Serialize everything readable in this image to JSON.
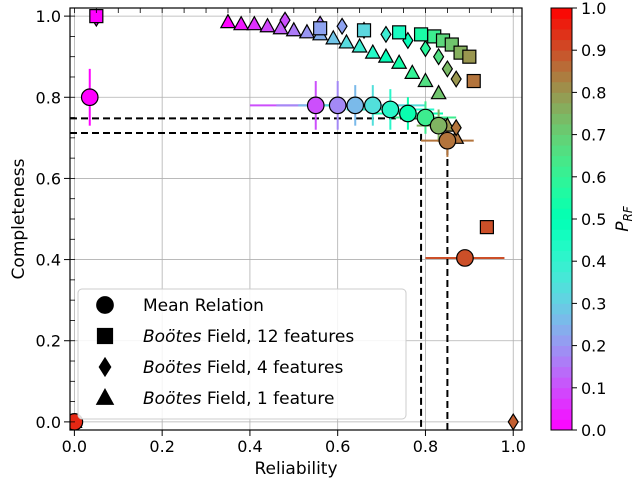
{
  "chart_data": {
    "type": "scatter",
    "xlabel": "Reliability",
    "ylabel": "Completeness",
    "xlim": [
      -0.01,
      1.02
    ],
    "ylim": [
      -0.02,
      1.02
    ],
    "xticks": [
      0.0,
      0.2,
      0.4,
      0.6,
      0.8,
      1.0
    ],
    "xtick_labels": [
      "0.0",
      "0.2",
      "0.4",
      "0.6",
      "0.8",
      "1.0"
    ],
    "yticks": [
      0.0,
      0.2,
      0.4,
      0.6,
      0.8,
      1.0
    ],
    "ytick_labels": [
      "0.0",
      "0.2",
      "0.4",
      "0.6",
      "0.8",
      "1.0"
    ],
    "grid": true,
    "legend_placement": "lower-left",
    "colorbar": {
      "label_main": "P",
      "label_sub": "RF",
      "range": [
        0.0,
        1.0
      ],
      "colormap": "rainbow",
      "ticks": [
        "0.0",
        "0.1",
        "0.2",
        "0.3",
        "0.4",
        "0.5",
        "0.6",
        "0.7",
        "0.8",
        "0.9",
        "1.0"
      ]
    },
    "reference_lines": [
      {
        "x": 0.79,
        "y": 0.712
      },
      {
        "x": 0.85,
        "y": 0.748
      }
    ],
    "series": [
      {
        "name": "Mean Relation",
        "marker": "circle",
        "points": [
          {
            "x": 0.035,
            "y": 0.8,
            "c": 0.0,
            "xerr": 0.0,
            "yerr": 0.07
          },
          {
            "x": 0.55,
            "y": 0.78,
            "c": 0.1,
            "xerr": 0.15,
            "yerr": 0.06
          },
          {
            "x": 0.6,
            "y": 0.78,
            "c": 0.18,
            "xerr": 0.14,
            "yerr": 0.06
          },
          {
            "x": 0.64,
            "y": 0.78,
            "c": 0.26,
            "xerr": 0.13,
            "yerr": 0.05
          },
          {
            "x": 0.68,
            "y": 0.78,
            "c": 0.34,
            "xerr": 0.12,
            "yerr": 0.05
          },
          {
            "x": 0.72,
            "y": 0.77,
            "c": 0.42,
            "xerr": 0.1,
            "yerr": 0.05
          },
          {
            "x": 0.76,
            "y": 0.76,
            "c": 0.52,
            "xerr": 0.08,
            "yerr": 0.04
          },
          {
            "x": 0.8,
            "y": 0.75,
            "c": 0.62,
            "xerr": 0.07,
            "yerr": 0.04
          },
          {
            "x": 0.83,
            "y": 0.73,
            "c": 0.75,
            "xerr": 0.05,
            "yerr": 0.04
          },
          {
            "x": 0.85,
            "y": 0.693,
            "c": 0.85,
            "xerr": 0.06,
            "yerr": 0.04
          },
          {
            "x": 0.89,
            "y": 0.404,
            "c": 0.9,
            "xerr": 0.09,
            "yerr": 0.0
          },
          {
            "x": 0.0,
            "y": 0.0,
            "c": 0.95,
            "xerr": 0.0,
            "yerr": 0.0
          }
        ]
      },
      {
        "name": "Boötes Field, 12 features",
        "marker": "square",
        "points": [
          {
            "x": 0.05,
            "y": 1.0,
            "c": 0.0
          },
          {
            "x": 0.56,
            "y": 0.97,
            "c": 0.22
          },
          {
            "x": 0.66,
            "y": 0.965,
            "c": 0.32
          },
          {
            "x": 0.74,
            "y": 0.96,
            "c": 0.45
          },
          {
            "x": 0.79,
            "y": 0.955,
            "c": 0.55
          },
          {
            "x": 0.82,
            "y": 0.95,
            "c": 0.62
          },
          {
            "x": 0.84,
            "y": 0.94,
            "c": 0.68
          },
          {
            "x": 0.86,
            "y": 0.93,
            "c": 0.72
          },
          {
            "x": 0.88,
            "y": 0.91,
            "c": 0.76
          },
          {
            "x": 0.9,
            "y": 0.9,
            "c": 0.8
          },
          {
            "x": 0.91,
            "y": 0.84,
            "c": 0.85
          },
          {
            "x": 0.94,
            "y": 0.48,
            "c": 0.9
          }
        ]
      },
      {
        "name": "Boötes Field, 4 features",
        "marker": "diamond",
        "points": [
          {
            "x": 0.05,
            "y": 0.995,
            "c": 0.02
          },
          {
            "x": 0.48,
            "y": 0.99,
            "c": 0.1
          },
          {
            "x": 0.56,
            "y": 0.98,
            "c": 0.16
          },
          {
            "x": 0.61,
            "y": 0.975,
            "c": 0.22
          },
          {
            "x": 0.66,
            "y": 0.965,
            "c": 0.3
          },
          {
            "x": 0.71,
            "y": 0.955,
            "c": 0.38
          },
          {
            "x": 0.76,
            "y": 0.94,
            "c": 0.48
          },
          {
            "x": 0.8,
            "y": 0.92,
            "c": 0.58
          },
          {
            "x": 0.83,
            "y": 0.9,
            "c": 0.66
          },
          {
            "x": 0.85,
            "y": 0.87,
            "c": 0.74
          },
          {
            "x": 0.87,
            "y": 0.845,
            "c": 0.8
          },
          {
            "x": 0.87,
            "y": 0.725,
            "c": 0.85
          },
          {
            "x": 1.0,
            "y": 0.0,
            "c": 0.88
          }
        ]
      },
      {
        "name": "Boötes Field, 1 feature",
        "marker": "triangle",
        "points": [
          {
            "x": 0.0,
            "y": 0.0,
            "c": 0.95
          },
          {
            "x": 0.35,
            "y": 0.985,
            "c": 0.0
          },
          {
            "x": 0.38,
            "y": 0.98,
            "c": 0.03
          },
          {
            "x": 0.41,
            "y": 0.98,
            "c": 0.06
          },
          {
            "x": 0.44,
            "y": 0.975,
            "c": 0.09
          },
          {
            "x": 0.47,
            "y": 0.97,
            "c": 0.12
          },
          {
            "x": 0.5,
            "y": 0.965,
            "c": 0.16
          },
          {
            "x": 0.53,
            "y": 0.96,
            "c": 0.2
          },
          {
            "x": 0.56,
            "y": 0.955,
            "c": 0.24
          },
          {
            "x": 0.59,
            "y": 0.945,
            "c": 0.28
          },
          {
            "x": 0.62,
            "y": 0.935,
            "c": 0.33
          },
          {
            "x": 0.65,
            "y": 0.925,
            "c": 0.38
          },
          {
            "x": 0.68,
            "y": 0.91,
            "c": 0.43
          },
          {
            "x": 0.71,
            "y": 0.9,
            "c": 0.48
          },
          {
            "x": 0.74,
            "y": 0.885,
            "c": 0.54
          },
          {
            "x": 0.77,
            "y": 0.86,
            "c": 0.6
          },
          {
            "x": 0.8,
            "y": 0.84,
            "c": 0.66
          },
          {
            "x": 0.83,
            "y": 0.81,
            "c": 0.72
          },
          {
            "x": 0.85,
            "y": 0.73,
            "c": 0.8
          },
          {
            "x": 0.87,
            "y": 0.7,
            "c": 0.85
          }
        ]
      }
    ]
  },
  "legend": {
    "items": [
      {
        "marker": "circle",
        "plain": "Mean Relation",
        "italic": ""
      },
      {
        "marker": "square",
        "plain": " Field, 12 features",
        "italic": "Boötes"
      },
      {
        "marker": "diamond",
        "plain": " Field, 4 features",
        "italic": "Boötes"
      },
      {
        "marker": "triangle",
        "plain": " Field, 1 feature",
        "italic": "Boötes"
      }
    ]
  }
}
